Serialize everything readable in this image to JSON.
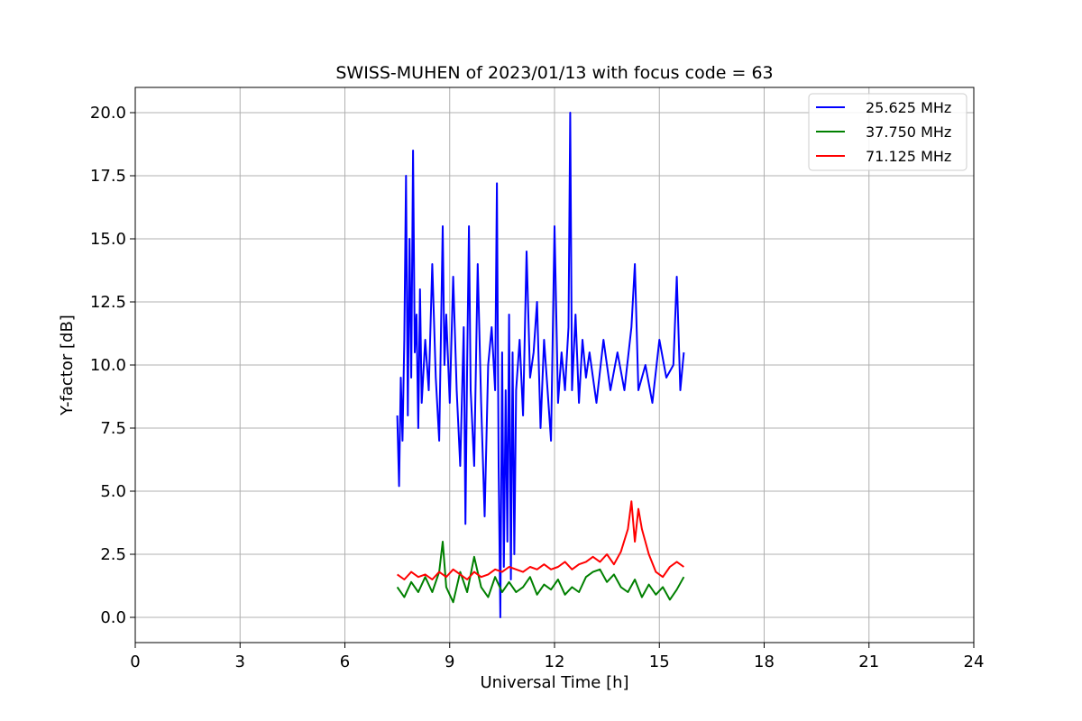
{
  "chart_data": {
    "type": "line",
    "title": "SWISS-MUHEN of 2023/01/13 with focus code = 63",
    "xlabel": "Universal Time [h]",
    "ylabel": "Y-factor [dB]",
    "xlim": [
      0,
      24
    ],
    "ylim": [
      -1,
      21
    ],
    "xticks": [
      0,
      3,
      6,
      9,
      12,
      15,
      18,
      21,
      24
    ],
    "xtick_labels": [
      "0",
      "3",
      "6",
      "9",
      "12",
      "15",
      "18",
      "21",
      "24"
    ],
    "yticks": [
      0,
      2.5,
      5,
      7.5,
      10,
      12.5,
      15,
      17.5,
      20
    ],
    "ytick_labels": [
      "0.0",
      "2.5",
      "5.0",
      "7.5",
      "10.0",
      "12.5",
      "15.0",
      "17.5",
      "20.0"
    ],
    "grid": true,
    "legend_position": "top-right",
    "series": [
      {
        "name": "25.625 MHz",
        "color": "#0000ff",
        "x": [
          7.5,
          7.55,
          7.6,
          7.65,
          7.7,
          7.75,
          7.8,
          7.85,
          7.9,
          7.95,
          8.0,
          8.05,
          8.1,
          8.15,
          8.2,
          8.3,
          8.4,
          8.5,
          8.6,
          8.7,
          8.8,
          8.85,
          8.9,
          9.0,
          9.1,
          9.2,
          9.3,
          9.4,
          9.45,
          9.5,
          9.55,
          9.6,
          9.7,
          9.8,
          9.9,
          10.0,
          10.1,
          10.2,
          10.3,
          10.35,
          10.4,
          10.45,
          10.5,
          10.55,
          10.6,
          10.65,
          10.7,
          10.75,
          10.8,
          10.85,
          10.9,
          11.0,
          11.1,
          11.2,
          11.3,
          11.4,
          11.5,
          11.6,
          11.7,
          11.8,
          11.9,
          12.0,
          12.1,
          12.2,
          12.3,
          12.4,
          12.45,
          12.5,
          12.6,
          12.7,
          12.8,
          12.9,
          13.0,
          13.2,
          13.4,
          13.6,
          13.8,
          14.0,
          14.2,
          14.3,
          14.4,
          14.6,
          14.8,
          15.0,
          15.2,
          15.4,
          15.5,
          15.6,
          15.7
        ],
        "y": [
          8.0,
          5.2,
          9.5,
          7.0,
          11.0,
          17.5,
          8.0,
          15.0,
          9.5,
          18.5,
          10.5,
          12.0,
          7.5,
          13.0,
          8.5,
          11.0,
          9.0,
          14.0,
          9.5,
          7.0,
          15.5,
          10.0,
          12.0,
          8.5,
          13.5,
          9.0,
          6.0,
          11.5,
          3.7,
          10.0,
          15.5,
          9.0,
          6.0,
          14.0,
          8.5,
          4.0,
          10.0,
          11.5,
          9.0,
          17.2,
          6.0,
          0.0,
          10.5,
          2.0,
          9.0,
          3.0,
          12.0,
          1.5,
          10.5,
          2.5,
          9.0,
          11.0,
          8.0,
          14.5,
          9.5,
          10.5,
          12.5,
          7.5,
          11.0,
          9.0,
          7.0,
          15.5,
          8.5,
          10.5,
          9.0,
          11.5,
          20.0,
          9.0,
          12.0,
          8.5,
          11.0,
          9.5,
          10.5,
          8.5,
          11.0,
          9.0,
          10.5,
          9.0,
          11.5,
          14.0,
          9.0,
          10.0,
          8.5,
          11.0,
          9.5,
          10.0,
          13.5,
          9.0,
          10.5
        ]
      },
      {
        "name": "37.750 MHz",
        "color": "#008000",
        "x": [
          7.5,
          7.7,
          7.9,
          8.1,
          8.3,
          8.5,
          8.7,
          8.8,
          8.9,
          9.1,
          9.3,
          9.5,
          9.7,
          9.9,
          10.1,
          10.3,
          10.5,
          10.7,
          10.9,
          11.1,
          11.3,
          11.5,
          11.7,
          11.9,
          12.1,
          12.3,
          12.5,
          12.7,
          12.9,
          13.1,
          13.3,
          13.5,
          13.7,
          13.9,
          14.1,
          14.3,
          14.5,
          14.7,
          14.9,
          15.1,
          15.3,
          15.5,
          15.7
        ],
        "y": [
          1.2,
          0.8,
          1.4,
          1.0,
          1.6,
          1.0,
          1.8,
          3.0,
          1.2,
          0.6,
          1.8,
          1.0,
          2.4,
          1.2,
          0.8,
          1.6,
          1.0,
          1.4,
          1.0,
          1.2,
          1.6,
          0.9,
          1.3,
          1.1,
          1.5,
          0.9,
          1.2,
          1.0,
          1.6,
          1.8,
          1.9,
          1.4,
          1.7,
          1.2,
          1.0,
          1.5,
          0.8,
          1.3,
          0.9,
          1.2,
          0.7,
          1.1,
          1.6
        ]
      },
      {
        "name": "71.125 MHz",
        "color": "#ff0000",
        "x": [
          7.5,
          7.7,
          7.9,
          8.1,
          8.3,
          8.5,
          8.7,
          8.9,
          9.1,
          9.3,
          9.5,
          9.7,
          9.9,
          10.1,
          10.3,
          10.5,
          10.7,
          10.9,
          11.1,
          11.3,
          11.5,
          11.7,
          11.9,
          12.1,
          12.3,
          12.5,
          12.7,
          12.9,
          13.1,
          13.3,
          13.5,
          13.7,
          13.9,
          14.1,
          14.2,
          14.3,
          14.4,
          14.5,
          14.7,
          14.9,
          15.1,
          15.3,
          15.5,
          15.7
        ],
        "y": [
          1.7,
          1.5,
          1.8,
          1.6,
          1.7,
          1.5,
          1.8,
          1.6,
          1.9,
          1.7,
          1.5,
          1.8,
          1.6,
          1.7,
          1.9,
          1.8,
          2.0,
          1.9,
          1.8,
          2.0,
          1.9,
          2.1,
          1.9,
          2.0,
          2.2,
          1.9,
          2.1,
          2.2,
          2.4,
          2.2,
          2.5,
          2.1,
          2.6,
          3.5,
          4.6,
          3.0,
          4.3,
          3.5,
          2.5,
          1.8,
          1.6,
          2.0,
          2.2,
          2.0
        ]
      }
    ]
  }
}
